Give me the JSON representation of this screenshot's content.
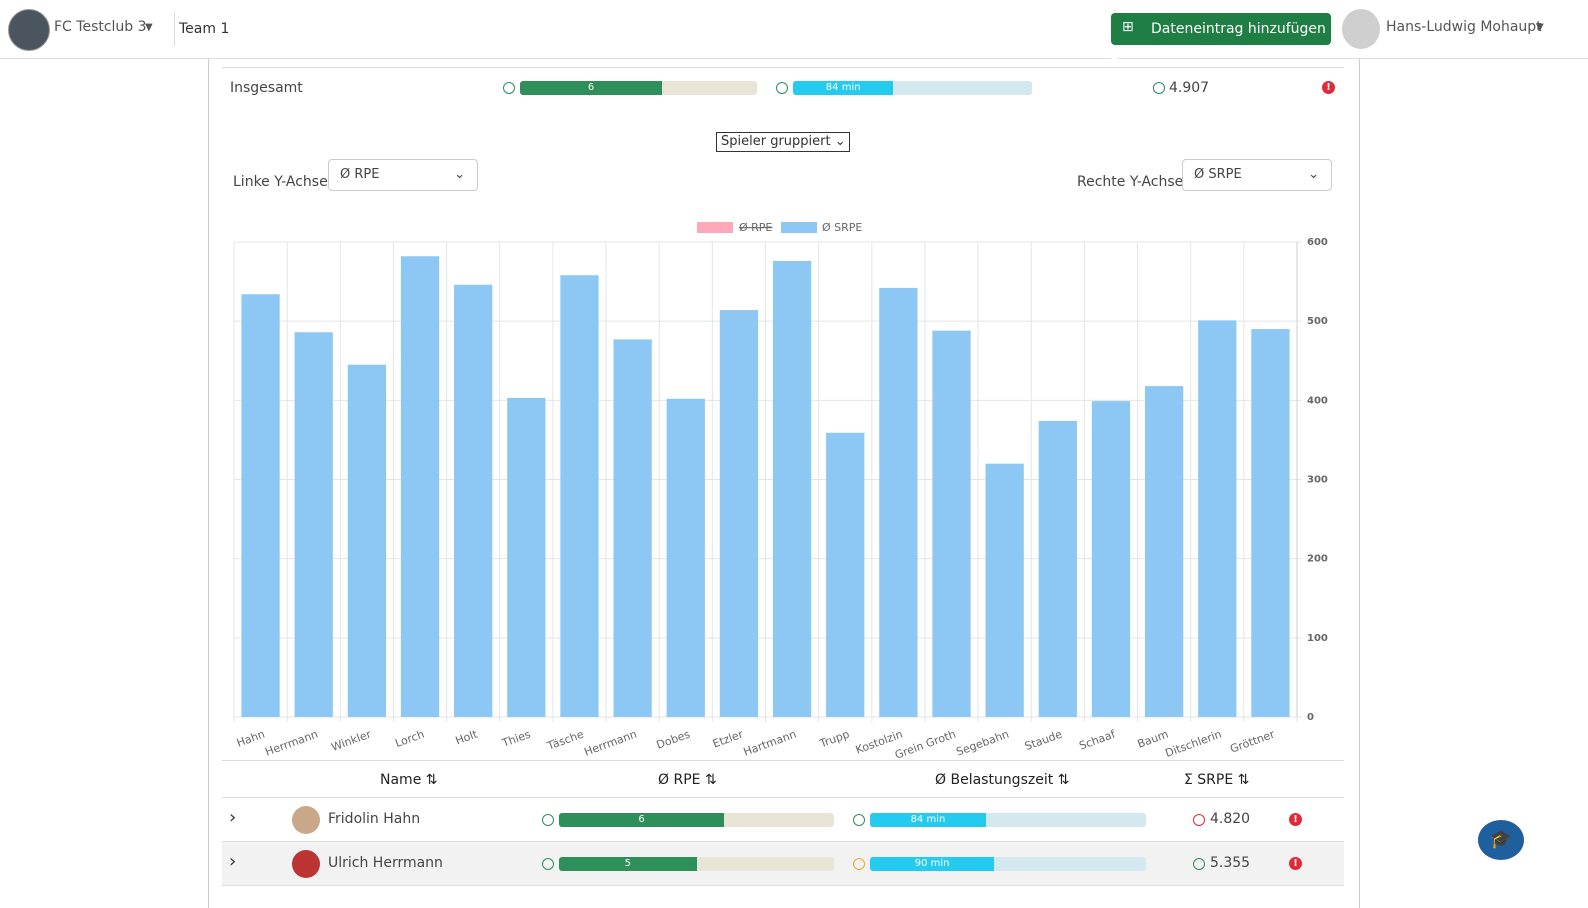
{
  "header": {
    "club": "FC Testclub 3",
    "team": "Team 1",
    "add_button": "Dateneintrag hinzufügen",
    "user": "Hans-Ludwig Mohaupt"
  },
  "summary": {
    "label": "Insgesamt",
    "rpe": 6,
    "minutes": 84,
    "minutes_label": "84 min",
    "srpe": "4.907"
  },
  "grouping": "Spieler gruppiert",
  "left_axis": {
    "label": "Linke Y-Achse",
    "value": "Ø RPE"
  },
  "right_axis": {
    "label": "Rechte Y-Achse",
    "value": "Ø SRPE"
  },
  "chart_data": {
    "type": "bar",
    "categories": [
      "Hahn",
      "Herrmann",
      "Winkler",
      "Lorch",
      "Holt",
      "Thies",
      "Täsche",
      "Herrmann",
      "Dobes",
      "Etzler",
      "Hartmann",
      "Trupp",
      "Kostolzin",
      "Grein Groth",
      "Segebahn",
      "Staude",
      "Schaaf",
      "Baum",
      "Ditschlerin",
      "Gröttner"
    ],
    "series": [
      {
        "name": "Ø SRPE",
        "color": "#8cc8f3",
        "values": [
          534,
          486,
          445,
          582,
          546,
          403,
          558,
          477,
          402,
          514,
          576,
          359,
          542,
          488,
          320,
          374,
          399,
          418,
          501,
          490
        ]
      }
    ],
    "hidden_series": [
      {
        "name": "Ø RPE",
        "color": "#ffa8ba"
      }
    ],
    "ylim": [
      0,
      600
    ],
    "yticks": [
      0,
      100,
      200,
      300,
      400,
      500,
      600
    ],
    "y_axis_side": "right",
    "grid": true
  },
  "table": {
    "headers": [
      "Name",
      "Ø RPE",
      "Ø Belastungszeit",
      "Σ SRPE"
    ],
    "rows": [
      {
        "name": "Fridolin Hahn",
        "rpe": 6,
        "minutes": 84,
        "minutes_label": "84 min",
        "srpe": "4.820"
      },
      {
        "name": "Ulrich Herrmann",
        "rpe": 5,
        "minutes": 90,
        "minutes_label": "90 min",
        "srpe": "5.355"
      }
    ]
  }
}
